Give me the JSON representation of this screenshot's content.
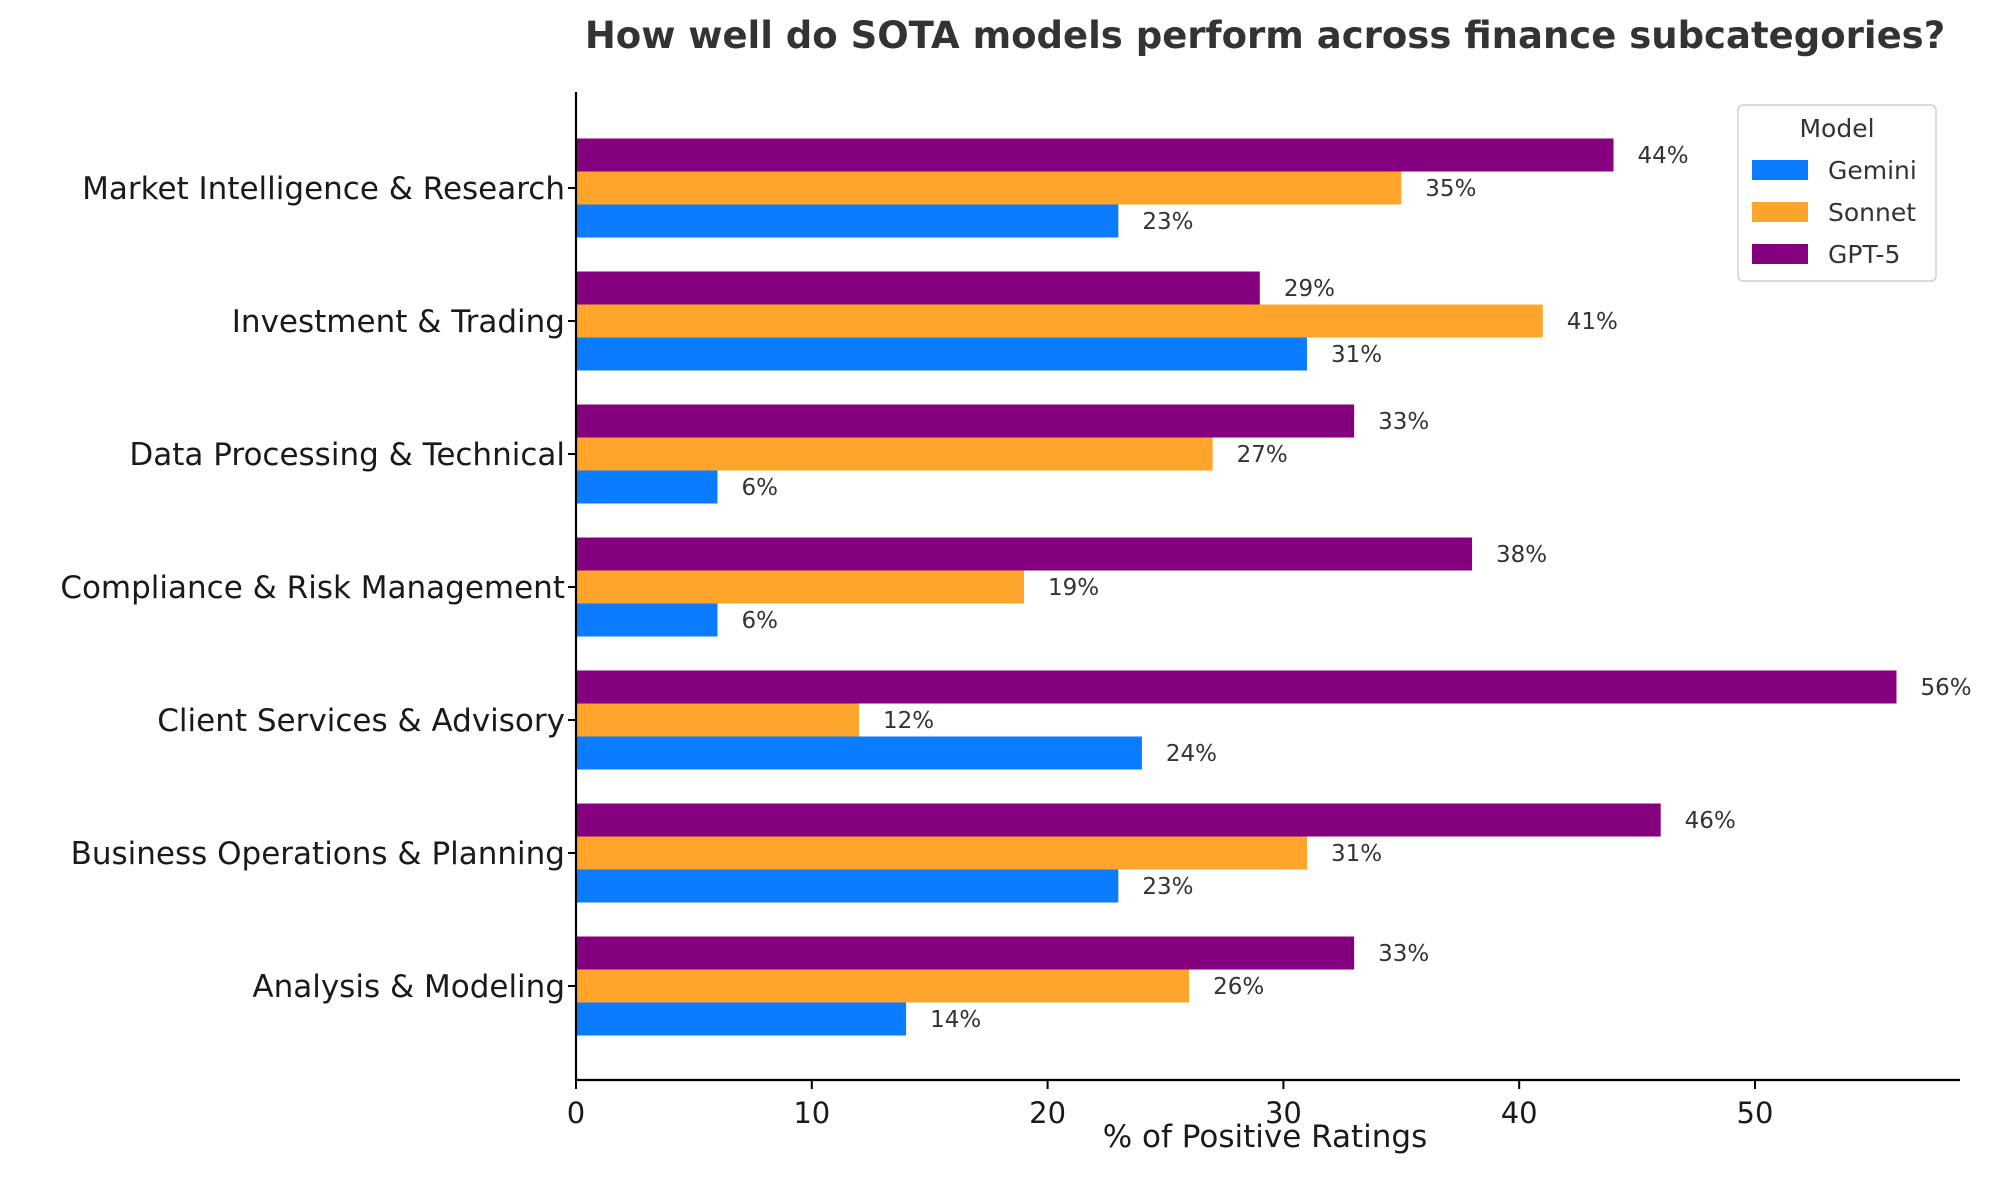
{
  "chart_data": {
    "type": "bar",
    "orientation": "horizontal",
    "title": "How well do SOTA models perform across finance subcategories?",
    "xlabel": "% of Positive Ratings",
    "ylabel": "",
    "xlim": [
      0,
      59
    ],
    "xticks": [
      0,
      10,
      20,
      30,
      40,
      50
    ],
    "grid": false,
    "categories": [
      "Market Intelligence & Research",
      "Investment & Trading",
      "Data Processing & Technical",
      "Compliance & Risk Management",
      "Client Services & Advisory",
      "Business Operations & Planning",
      "Analysis & Modeling"
    ],
    "series": [
      {
        "name": "Gemini",
        "color": "#0a7cff",
        "values": [
          23,
          31,
          6,
          6,
          24,
          23,
          14
        ],
        "labels": [
          "23%",
          "31%",
          "6%",
          "6%",
          "24%",
          "23%",
          "14%"
        ]
      },
      {
        "name": "Sonnet",
        "color": "#ffa52c",
        "values": [
          35,
          41,
          27,
          19,
          12,
          31,
          26
        ],
        "labels": [
          "35%",
          "41%",
          "27%",
          "19%",
          "12%",
          "31%",
          "26%"
        ]
      },
      {
        "name": "GPT-5",
        "color": "#84007f",
        "values": [
          44,
          29,
          33,
          38,
          56,
          46,
          33
        ],
        "labels": [
          "44%",
          "29%",
          "33%",
          "38%",
          "56%",
          "46%",
          "33%"
        ]
      }
    ],
    "legend": {
      "title": "Model",
      "position": "top-right"
    }
  }
}
